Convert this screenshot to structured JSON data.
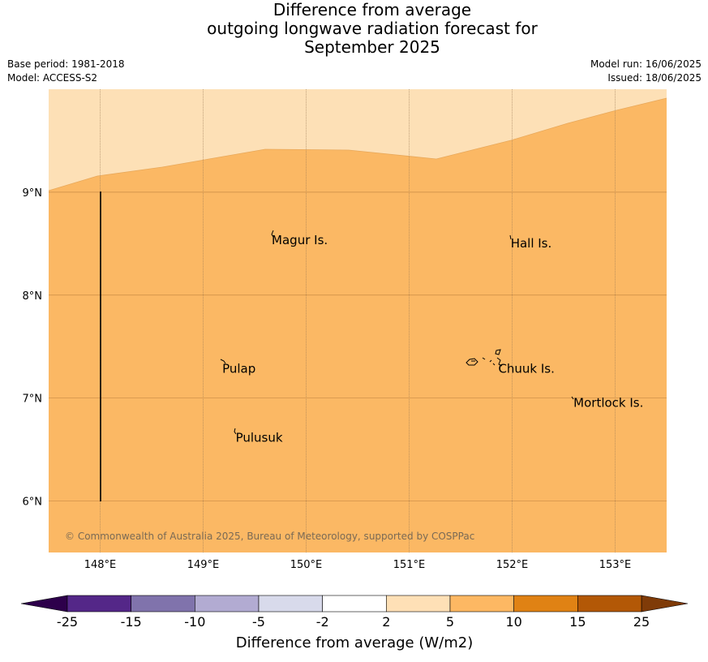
{
  "title": {
    "line1": "Difference from average",
    "line2": "outgoing longwave radiation forecast for",
    "line3": "September 2025"
  },
  "meta": {
    "base_period": "Base period: 1981-2018",
    "model": "Model: ACCESS-S2",
    "model_run": "Model run: 16/06/2025",
    "issued": "Issued: 18/06/2025"
  },
  "map": {
    "lon_range": [
      147.5,
      153.5
    ],
    "lat_range": [
      5.5,
      10.0
    ],
    "lon_ticks": [
      {
        "value": 148,
        "label": "148°E"
      },
      {
        "value": 149,
        "label": "149°E"
      },
      {
        "value": 150,
        "label": "150°E"
      },
      {
        "value": 151,
        "label": "151°E"
      },
      {
        "value": 152,
        "label": "152°E"
      },
      {
        "value": 153,
        "label": "153°E"
      }
    ],
    "lat_ticks": [
      {
        "value": 9,
        "label": "9°N"
      },
      {
        "value": 8,
        "label": "8°N"
      },
      {
        "value": 7,
        "label": "7°N"
      },
      {
        "value": 6,
        "label": "6°N"
      }
    ],
    "places": [
      {
        "name": "Magur Is.",
        "lon": 149.65,
        "lat": 8.55
      },
      {
        "name": "Hall Is.",
        "lon": 151.97,
        "lat": 8.52
      },
      {
        "name": "Pulap",
        "lon": 149.17,
        "lat": 7.3
      },
      {
        "name": "Chuuk Is.",
        "lon": 151.85,
        "lat": 7.3
      },
      {
        "name": "Mortlock Is.",
        "lon": 152.58,
        "lat": 6.97
      },
      {
        "name": "Pulusuk",
        "lon": 149.3,
        "lat": 6.63
      }
    ],
    "copyright": "© Commonwealth of Australia 2025, Bureau of Meteorology, supported by COSPPac",
    "fill_colors": {
      "band_2_5": "#fde0b6",
      "band_5_10": "#fbb864"
    }
  },
  "colorbar": {
    "title": "Difference from average (W/m2)",
    "labels": [
      "-25",
      "-15",
      "-10",
      "-5",
      "-2",
      "2",
      "5",
      "10",
      "15",
      "25"
    ],
    "colors": [
      "#2d004b",
      "#542788",
      "#8073ac",
      "#b2abd2",
      "#d8daeb",
      "#ffffff",
      "#fee0b6",
      "#fdb863",
      "#e08214",
      "#b35806",
      "#7f3b08"
    ]
  }
}
